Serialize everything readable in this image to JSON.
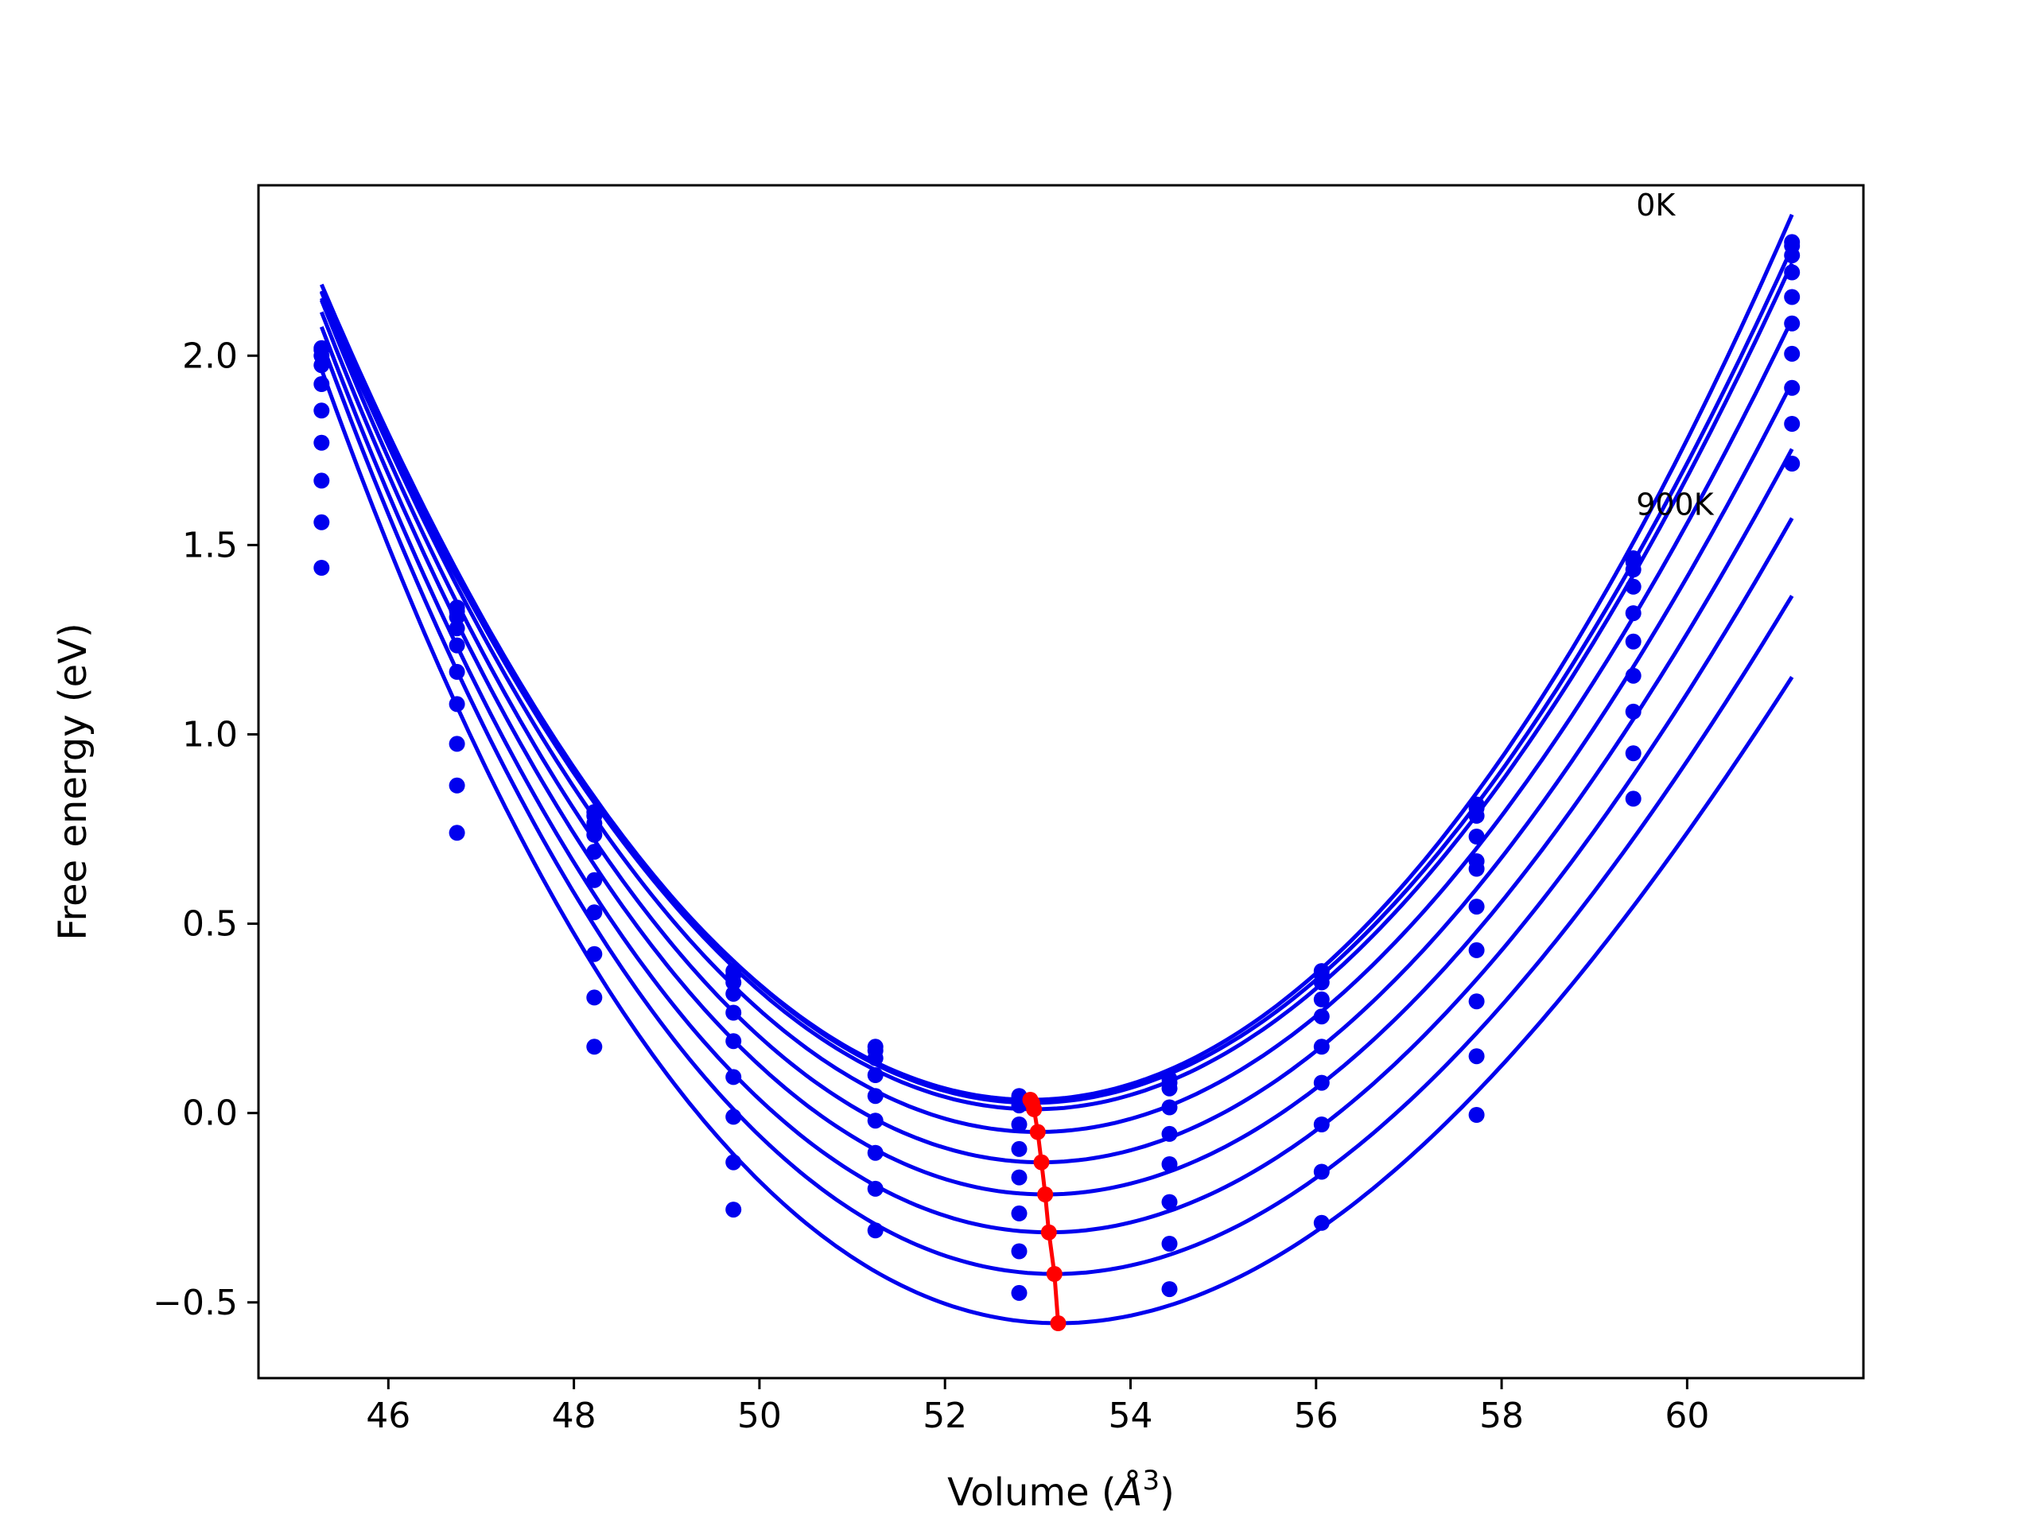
{
  "chart_data": {
    "type": "scatter",
    "title": "",
    "xlabel": "Volume (",
    "xlabel_symbol": "Å",
    "xlabel_exponent": "3",
    "xlabel_close": ")",
    "ylabel": "Free energy (eV)",
    "xlim": [
      44.6,
      61.9
    ],
    "ylim": [
      -0.7,
      2.45
    ],
    "xticks": [
      46,
      48,
      50,
      52,
      54,
      56,
      58,
      60
    ],
    "xtick_labels": [
      "46",
      "48",
      "50",
      "52",
      "54",
      "56",
      "58",
      "60"
    ],
    "yticks": [
      -0.5,
      0.0,
      0.5,
      1.0,
      1.5,
      2.0
    ],
    "ytick_labels": [
      "−0.5",
      "0.0",
      "0.5",
      "1.0",
      "1.5",
      "2.0"
    ],
    "grid": false,
    "legend": false,
    "colors": {
      "curves": "#0000ee",
      "minima": "#ff0000",
      "frame": "#000000"
    },
    "annotations": [
      {
        "text": "0K",
        "x": 59.45,
        "y": 2.37
      },
      {
        "text": "900K",
        "x": 59.45,
        "y": 1.58
      }
    ],
    "volumes": [
      45.28,
      46.74,
      48.22,
      49.72,
      51.25,
      52.8,
      54.42,
      56.06,
      57.73,
      59.42,
      61.13
    ],
    "series": [
      {
        "values": [
          2.02,
          1.335,
          0.795,
          0.375,
          0.175,
          0.045,
          0.09,
          0.375,
          0.815,
          1.465,
          2.3
        ],
        "fit": {
          "v0": 52.92,
          "e0": 0.035,
          "a": 0.0355,
          "b": -0.0001
        }
      },
      {
        "values": [
          2.015,
          1.325,
          0.785,
          0.365,
          0.165,
          0.035,
          0.08,
          0.365,
          0.805,
          1.455,
          2.29
        ],
        "fit": {
          "v0": 52.94,
          "e0": 0.027,
          "a": 0.0353,
          "b": -0.0002
        }
      },
      {
        "values": [
          2.0,
          1.31,
          0.765,
          0.345,
          0.145,
          0.02,
          0.065,
          0.345,
          0.785,
          1.435,
          2.265
        ],
        "fit": {
          "v0": 52.96,
          "e0": 0.01,
          "a": 0.0351,
          "b": -0.0002
        }
      },
      {
        "values": [
          1.975,
          1.28,
          0.735,
          0.315,
          0.1,
          -0.03,
          0.015,
          0.3,
          0.73,
          1.39,
          2.22
        ],
        "fit": {
          "v0": 53.0,
          "e0": -0.05,
          "a": 0.0349,
          "b": -0.0003
        }
      },
      {
        "values": [
          1.925,
          1.235,
          0.69,
          0.265,
          0.045,
          -0.095,
          -0.055,
          0.255,
          0.665,
          1.32,
          2.155
        ],
        "fit": {
          "v0": 53.04,
          "e0": -0.13,
          "a": 0.0347,
          "b": -0.0004
        }
      },
      {
        "values": [
          1.855,
          1.165,
          0.615,
          0.19,
          -0.02,
          -0.17,
          -0.135,
          0.175,
          0.645,
          1.245,
          2.085
        ],
        "fit": {
          "v0": 53.08,
          "e0": -0.215,
          "a": 0.0344,
          "b": -0.0005
        }
      },
      {
        "values": [
          1.77,
          1.08,
          0.53,
          0.095,
          -0.105,
          -0.265,
          -0.235,
          0.08,
          0.545,
          1.155,
          2.005
        ],
        "fit": {
          "v0": 53.12,
          "e0": -0.315,
          "a": 0.0342,
          "b": -0.0006
        }
      },
      {
        "values": [
          1.67,
          0.975,
          0.42,
          -0.01,
          -0.2,
          -0.365,
          -0.345,
          -0.03,
          0.43,
          1.06,
          1.915
        ],
        "fit": {
          "v0": 53.18,
          "e0": -0.425,
          "a": 0.0339,
          "b": -0.0007
        }
      },
      {
        "values": [
          1.56,
          0.865,
          0.305,
          -0.13,
          -0.31,
          -0.475,
          -0.465,
          -0.155,
          0.295,
          0.95,
          1.82
        ],
        "fit": {
          "v0": 53.22,
          "e0": -0.555,
          "a": 0.0336,
          "b": -0.0008
        }
      },
      {
        "values": [
          1.44,
          0.74,
          0.175,
          -0.255,
          null,
          null,
          null,
          -0.29,
          0.15,
          0.83,
          1.715
        ],
        "fit": null
      }
    ],
    "stray_points": [
      {
        "x": 57.73,
        "y": -0.005
      }
    ],
    "minima": {
      "x": [
        52.92,
        52.94,
        52.96,
        53.0,
        53.04,
        53.08,
        53.12,
        53.18,
        53.22
      ],
      "y": [
        0.035,
        0.027,
        0.01,
        -0.05,
        -0.13,
        -0.215,
        -0.315,
        -0.425,
        -0.555
      ]
    }
  }
}
